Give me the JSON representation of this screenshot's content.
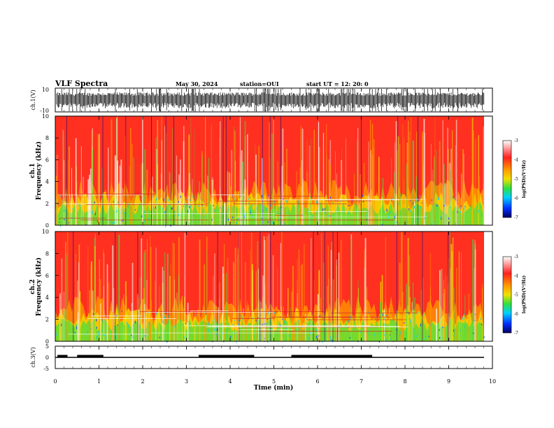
{
  "header": {
    "title": "VLF Spectra",
    "date": "May 30, 2024",
    "station": "station=OUI",
    "start": "start UT =  12: 20: 0"
  },
  "chart_data": [
    {
      "type": "line",
      "name_label": "ch.1(V)",
      "ylim": [
        -10,
        10
      ],
      "ytick_labels": [
        "10",
        "-10"
      ],
      "x_range": [
        0,
        10
      ]
    },
    {
      "type": "heatmap",
      "ylabel": "ch.1\nFrequency (kHz)",
      "ylim": [
        0,
        10
      ],
      "ytick_labels": [
        "0",
        "2",
        "4",
        "6",
        "8",
        "10"
      ],
      "colorbar": {
        "label": "log(PSD)(V²/Hz)",
        "range": [
          -7,
          -3
        ],
        "tick_labels": [
          "-3",
          "-4",
          "-5",
          "-6",
          "-7"
        ]
      }
    },
    {
      "type": "heatmap",
      "ylabel": "ch.2\nFrequency (kHz)",
      "ylim": [
        0,
        10
      ],
      "ytick_labels": [
        "0",
        "2",
        "4",
        "6",
        "8",
        "10"
      ],
      "colorbar": {
        "label": "log(PSD)(V²/Hz)",
        "range": [
          -7,
          -3
        ],
        "tick_labels": [
          "-3",
          "-4",
          "-5",
          "-6",
          "-7"
        ]
      }
    },
    {
      "type": "line",
      "name_label": "ch.3(V)",
      "ylim": [
        -5,
        5
      ],
      "ytick_labels": [
        "5",
        "0",
        "-5"
      ],
      "segments_thick": [
        [
          0.05,
          0.28
        ],
        [
          0.5,
          1.1
        ],
        [
          3.28,
          4.55
        ],
        [
          5.4,
          7.25
        ]
      ],
      "baseline_value": 0,
      "x_range": [
        0,
        10
      ]
    }
  ],
  "xaxis": {
    "label": "Time (min)",
    "tick_labels": [
      "0",
      "1",
      "2",
      "3",
      "4",
      "5",
      "6",
      "7",
      "8",
      "9",
      "10"
    ]
  },
  "colors": {
    "red": "#ff3020",
    "orange": "#ff9a00",
    "yellow": "#f0e000",
    "green": "#40e040",
    "cyan": "#00d0ff",
    "blue": "#0040ff",
    "navy": "#000080"
  }
}
